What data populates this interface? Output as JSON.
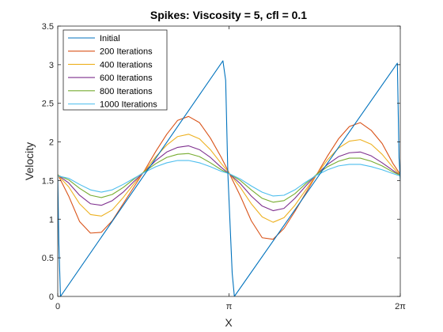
{
  "chart_data": {
    "type": "line",
    "title": "Spikes: Viscosity = 5, cfl = 0.1",
    "xlabel": "X",
    "ylabel": "Velocity",
    "xlim": [
      0,
      6.2832
    ],
    "ylim": [
      0,
      3.5
    ],
    "xticks": [
      {
        "value": 0,
        "label": "0"
      },
      {
        "value": 3.1416,
        "label": "π"
      },
      {
        "value": 6.2832,
        "label": "2π"
      }
    ],
    "yticks": [
      {
        "value": 0,
        "label": "0"
      },
      {
        "value": 0.5,
        "label": "0.5"
      },
      {
        "value": 1,
        "label": "1"
      },
      {
        "value": 1.5,
        "label": "1.5"
      },
      {
        "value": 2,
        "label": "2"
      },
      {
        "value": 2.5,
        "label": "2.5"
      },
      {
        "value": 3,
        "label": "3"
      },
      {
        "value": 3.5,
        "label": "3.5"
      }
    ],
    "grid": false,
    "legend_position": "top-left",
    "series": [
      {
        "name": "Initial",
        "color": "#0072bd",
        "x": [
          0,
          0.02,
          0.05,
          3.03,
          3.08,
          3.12,
          3.2,
          3.24,
          6.23,
          6.26,
          6.283
        ],
        "y": [
          1.55,
          0.7,
          0.0,
          3.05,
          2.8,
          1.6,
          0.3,
          0.0,
          3.02,
          1.8,
          1.5
        ]
      },
      {
        "name": "200 Iterations",
        "color": "#d95319",
        "x": [
          0,
          0.2,
          0.4,
          0.6,
          0.8,
          1.0,
          1.2,
          1.4,
          1.6,
          1.8,
          2.0,
          2.2,
          2.4,
          2.6,
          2.8,
          3.0,
          3.1416,
          3.35,
          3.55,
          3.75,
          3.95,
          4.15,
          4.35,
          4.55,
          4.75,
          4.95,
          5.15,
          5.35,
          5.55,
          5.75,
          5.95,
          6.15,
          6.283
        ],
        "y": [
          1.58,
          1.3,
          0.97,
          0.82,
          0.83,
          0.98,
          1.2,
          1.42,
          1.64,
          1.88,
          2.1,
          2.28,
          2.33,
          2.25,
          2.05,
          1.8,
          1.6,
          1.3,
          0.98,
          0.76,
          0.74,
          0.88,
          1.1,
          1.34,
          1.58,
          1.82,
          2.04,
          2.2,
          2.25,
          2.15,
          1.98,
          1.72,
          1.58
        ]
      },
      {
        "name": "400 Iterations",
        "color": "#edb120",
        "x": [
          0,
          0.2,
          0.4,
          0.6,
          0.8,
          1.0,
          1.2,
          1.4,
          1.6,
          1.8,
          2.0,
          2.2,
          2.4,
          2.6,
          2.8,
          3.0,
          3.1416,
          3.35,
          3.55,
          3.75,
          3.95,
          4.15,
          4.35,
          4.55,
          4.75,
          4.95,
          5.15,
          5.35,
          5.55,
          5.75,
          5.95,
          6.15,
          6.283
        ],
        "y": [
          1.57,
          1.42,
          1.2,
          1.06,
          1.04,
          1.12,
          1.28,
          1.46,
          1.63,
          1.81,
          1.96,
          2.07,
          2.1,
          2.04,
          1.9,
          1.72,
          1.6,
          1.41,
          1.2,
          1.03,
          0.96,
          1.02,
          1.18,
          1.38,
          1.58,
          1.77,
          1.92,
          2.01,
          2.03,
          1.97,
          1.84,
          1.67,
          1.57
        ]
      },
      {
        "name": "600 Iterations",
        "color": "#7e2f8e",
        "x": [
          0,
          0.2,
          0.4,
          0.6,
          0.8,
          1.0,
          1.2,
          1.4,
          1.6,
          1.8,
          2.0,
          2.2,
          2.4,
          2.6,
          2.8,
          3.0,
          3.1416,
          3.35,
          3.55,
          3.75,
          3.95,
          4.15,
          4.35,
          4.55,
          4.75,
          4.95,
          5.15,
          5.35,
          5.55,
          5.75,
          5.95,
          6.15,
          6.283
        ],
        "y": [
          1.57,
          1.47,
          1.31,
          1.2,
          1.18,
          1.24,
          1.35,
          1.49,
          1.62,
          1.76,
          1.87,
          1.93,
          1.95,
          1.9,
          1.8,
          1.67,
          1.59,
          1.46,
          1.3,
          1.17,
          1.11,
          1.14,
          1.27,
          1.43,
          1.58,
          1.71,
          1.81,
          1.86,
          1.87,
          1.82,
          1.73,
          1.63,
          1.57
        ]
      },
      {
        "name": "800 Iterations",
        "color": "#77ac30",
        "x": [
          0,
          0.2,
          0.4,
          0.6,
          0.8,
          1.0,
          1.2,
          1.4,
          1.6,
          1.8,
          2.0,
          2.2,
          2.4,
          2.6,
          2.8,
          3.0,
          3.1416,
          3.35,
          3.55,
          3.75,
          3.95,
          4.15,
          4.35,
          4.55,
          4.75,
          4.95,
          5.15,
          5.35,
          5.55,
          5.75,
          5.95,
          6.15,
          6.283
        ],
        "y": [
          1.57,
          1.51,
          1.4,
          1.31,
          1.28,
          1.32,
          1.41,
          1.52,
          1.62,
          1.72,
          1.8,
          1.84,
          1.85,
          1.81,
          1.73,
          1.64,
          1.59,
          1.5,
          1.38,
          1.27,
          1.22,
          1.24,
          1.33,
          1.46,
          1.58,
          1.68,
          1.75,
          1.79,
          1.79,
          1.75,
          1.69,
          1.61,
          1.57
        ]
      },
      {
        "name": "1000 Iterations",
        "color": "#4dbeee",
        "x": [
          0,
          0.2,
          0.4,
          0.6,
          0.8,
          1.0,
          1.2,
          1.4,
          1.6,
          1.8,
          2.0,
          2.2,
          2.4,
          2.6,
          2.8,
          3.0,
          3.1416,
          3.35,
          3.55,
          3.75,
          3.95,
          4.15,
          4.35,
          4.55,
          4.75,
          4.95,
          5.15,
          5.35,
          5.55,
          5.75,
          5.95,
          6.15,
          6.283
        ],
        "y": [
          1.56,
          1.53,
          1.45,
          1.38,
          1.35,
          1.38,
          1.45,
          1.53,
          1.61,
          1.68,
          1.73,
          1.76,
          1.76,
          1.73,
          1.68,
          1.62,
          1.59,
          1.52,
          1.43,
          1.35,
          1.3,
          1.31,
          1.38,
          1.48,
          1.57,
          1.64,
          1.69,
          1.71,
          1.71,
          1.68,
          1.64,
          1.59,
          1.56
        ]
      }
    ]
  }
}
